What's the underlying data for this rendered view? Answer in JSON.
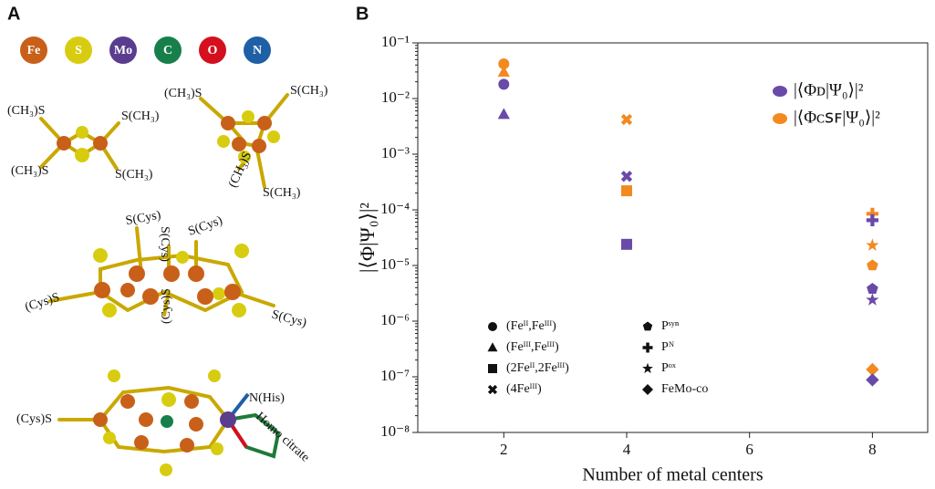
{
  "panel_labels": [
    "A",
    "B"
  ],
  "atom_legend": [
    {
      "label": "Fe",
      "color": "#c8601a"
    },
    {
      "label": "S",
      "color": "#d8cc10"
    },
    {
      "label": "Mo",
      "color": "#5a3d8e"
    },
    {
      "label": "C",
      "color": "#17804a"
    },
    {
      "label": "O",
      "color": "#d4101e"
    },
    {
      "label": "N",
      "color": "#1f5fa6"
    }
  ],
  "structure_labels": [
    "(CH₃)S",
    "S(CH₃)",
    "(CH₃)S",
    "S(CH₃)",
    "(CH₃)S",
    "S(CH₃)",
    "(CH₃)S",
    "S(CH₃)",
    "S(Cys)",
    "S(Cys)",
    "S(Cys)",
    "(Cys)S",
    "(Cys)S",
    "S(Cys)",
    "(Cys)S",
    "N(His)",
    "Homo citrate"
  ],
  "chart_data": {
    "type": "scatter",
    "xlabel": "Number of metal centers",
    "ylabel": "|⟨Φ|Ψ₀⟩|²",
    "xlim": [
      0.6,
      8.9
    ],
    "xticks": [
      2,
      4,
      6,
      8
    ],
    "ylim": [
      1e-08,
      0.1
    ],
    "log_y": true,
    "yticks": [
      {
        "value": 1e-08,
        "label": "10⁻⁸"
      },
      {
        "value": 1e-07,
        "label": "10⁻⁷"
      },
      {
        "value": 1e-06,
        "label": "10⁻⁶"
      },
      {
        "value": 1e-05,
        "label": "10⁻⁵"
      },
      {
        "value": 0.0001,
        "label": "10⁻⁴"
      },
      {
        "value": 0.001,
        "label": "10⁻³"
      },
      {
        "value": 0.01,
        "label": "10⁻²"
      },
      {
        "value": 0.1,
        "label": "10⁻¹"
      }
    ],
    "series": [
      {
        "name": "|⟨Φᴄꜱꜰ|Ψ₀⟩|²",
        "color": "#f28a1f",
        "x": [
          2,
          2,
          4,
          4,
          8,
          8,
          8,
          8
        ],
        "values": [
          0.042,
          0.03,
          0.0042,
          0.00022,
          8.5e-05,
          2.3e-05,
          1e-05,
          1.35e-07
        ],
        "markers": [
          "circle",
          "triangle",
          "cross",
          "square",
          "plus",
          "star",
          "pentagon",
          "diamond"
        ]
      },
      {
        "name": "|⟨Φᴅ|Ψ₀⟩|²",
        "color": "#6a4aa8",
        "x": [
          2,
          2,
          4,
          4,
          8,
          8,
          8,
          8
        ],
        "values": [
          0.018,
          0.0052,
          0.0004,
          2.4e-05,
          6.5e-05,
          2.4e-06,
          3.8e-06,
          8.8e-08
        ],
        "markers": [
          "circle",
          "triangle",
          "cross",
          "square",
          "plus",
          "star",
          "pentagon",
          "diamond"
        ]
      }
    ],
    "marker_legend": [
      {
        "label": "(Feᴵᴵ,Feᴵᴵᴵ)",
        "marker": "circle"
      },
      {
        "label": "(Feᴵᴵᴵ,Feᴵᴵᴵ)",
        "marker": "triangle"
      },
      {
        "label": "(2Feᴵᴵ,2Feᴵᴵᴵ)",
        "marker": "square"
      },
      {
        "label": "(4Feᴵᴵᴵ)",
        "marker": "cross"
      },
      {
        "label": "Pˢʸⁿ",
        "marker": "pentagon"
      },
      {
        "label": "Pᴺ",
        "marker": "plus"
      },
      {
        "label": "Pᵒˣ",
        "marker": "star"
      },
      {
        "label": "FeMo-co",
        "marker": "diamond"
      }
    ]
  }
}
